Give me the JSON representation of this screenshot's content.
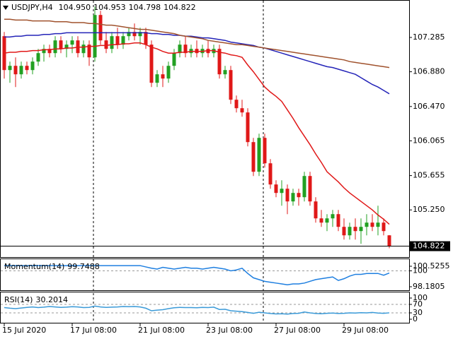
{
  "chart_data": [
    {
      "type": "candlestick",
      "title": "USDJPY,H4",
      "header_labels": [
        "104.950",
        "104.953",
        "104.798",
        "104.822"
      ],
      "categories": [
        "15 Jul 2020",
        null,
        null,
        null,
        null,
        null,
        null,
        null,
        null,
        null,
        null,
        null,
        "17 Jul 08:00",
        null,
        null,
        null,
        null,
        null,
        null,
        null,
        null,
        null,
        null,
        null,
        "21 Jul 08:00",
        null,
        null,
        null,
        null,
        null,
        null,
        null,
        null,
        null,
        null,
        null,
        "23 Jul 08:00",
        null,
        null,
        null,
        null,
        null,
        null,
        null,
        null,
        null,
        null,
        null,
        "27 Jul 08:00",
        null,
        null,
        null,
        null,
        null,
        null,
        null,
        null,
        null,
        null,
        null,
        "29 Jul 08:00",
        null,
        null,
        null,
        null,
        null,
        null,
        null,
        null
      ],
      "open": [
        107.3,
        106.9,
        106.95,
        106.85,
        106.95,
        106.9,
        107.0,
        107.1,
        107.15,
        107.1,
        107.25,
        107.15,
        107.2,
        107.25,
        107.1,
        107.2,
        107.05,
        107.55,
        107.25,
        107.15,
        107.3,
        107.2,
        107.3,
        107.35,
        107.3,
        107.35,
        107.2,
        106.75,
        106.85,
        106.8,
        106.95,
        107.1,
        107.2,
        107.1,
        107.15,
        107.1,
        107.15,
        107.1,
        107.15,
        106.85,
        106.9,
        106.55,
        106.45,
        106.4,
        106.05,
        105.7,
        106.1,
        105.8,
        105.55,
        105.45,
        105.5,
        105.35,
        105.45,
        105.4,
        105.65,
        105.35,
        105.15,
        105.1,
        105.15,
        105.2,
        105.05,
        104.95,
        105.05,
        105.0,
        105.05,
        105.1,
        105.05,
        105.1,
        104.95
      ],
      "high": [
        107.35,
        107.0,
        107.05,
        107.0,
        107.0,
        107.05,
        107.15,
        107.2,
        107.2,
        107.3,
        107.3,
        107.25,
        107.3,
        107.3,
        107.25,
        107.25,
        107.65,
        107.6,
        107.35,
        107.35,
        107.4,
        107.35,
        107.4,
        107.45,
        107.4,
        107.4,
        107.25,
        106.9,
        106.95,
        107.0,
        107.15,
        107.25,
        107.3,
        107.2,
        107.25,
        107.2,
        107.25,
        107.2,
        107.2,
        106.95,
        106.95,
        106.6,
        106.55,
        106.45,
        106.1,
        106.15,
        106.15,
        105.85,
        105.6,
        105.6,
        105.55,
        105.5,
        105.5,
        105.7,
        105.7,
        105.4,
        105.25,
        105.2,
        105.25,
        105.25,
        105.15,
        105.1,
        105.15,
        105.15,
        105.2,
        105.2,
        105.3,
        105.15,
        104.953
      ],
      "low": [
        106.8,
        106.75,
        106.7,
        106.8,
        106.85,
        106.85,
        106.95,
        107.0,
        107.05,
        107.05,
        107.1,
        107.05,
        107.1,
        107.05,
        107.05,
        106.95,
        107.0,
        107.2,
        107.1,
        107.1,
        107.15,
        107.15,
        107.25,
        107.25,
        107.2,
        107.15,
        106.7,
        106.7,
        106.7,
        106.75,
        106.9,
        107.05,
        107.05,
        107.05,
        107.05,
        107.05,
        107.05,
        107.05,
        106.8,
        106.8,
        106.5,
        106.4,
        106.35,
        106.0,
        105.65,
        105.65,
        105.75,
        105.5,
        105.4,
        105.3,
        105.2,
        105.3,
        105.3,
        105.35,
        105.3,
        105.1,
        105.05,
        105.0,
        105.05,
        105.0,
        104.9,
        104.9,
        104.9,
        104.85,
        104.95,
        105.0,
        104.95,
        104.95,
        104.798
      ],
      "close": [
        106.9,
        106.95,
        106.85,
        106.95,
        106.9,
        107.0,
        107.1,
        107.15,
        107.1,
        107.25,
        107.15,
        107.2,
        107.25,
        107.1,
        107.2,
        107.05,
        107.55,
        107.25,
        107.15,
        107.3,
        107.2,
        107.3,
        107.35,
        107.3,
        107.35,
        107.2,
        106.75,
        106.85,
        106.8,
        106.95,
        107.1,
        107.2,
        107.1,
        107.15,
        107.1,
        107.15,
        107.1,
        107.15,
        106.85,
        106.9,
        106.55,
        106.45,
        106.4,
        106.05,
        105.7,
        106.1,
        105.8,
        105.55,
        105.45,
        105.5,
        105.35,
        105.45,
        105.4,
        105.65,
        105.35,
        105.15,
        105.1,
        105.15,
        105.2,
        105.05,
        104.95,
        105.05,
        105.0,
        105.05,
        105.1,
        105.05,
        105.1,
        105.0,
        104.822
      ],
      "up_color": "#22a022",
      "down_color": "#e01818",
      "series": [
        {
          "color": "#e01818",
          "values": [
            107.1,
            107.11,
            107.11,
            107.12,
            107.12,
            107.13,
            107.13,
            107.14,
            107.14,
            107.15,
            107.15,
            107.16,
            107.16,
            107.17,
            107.17,
            107.18,
            107.18,
            107.19,
            107.19,
            107.2,
            107.2,
            107.21,
            107.21,
            107.22,
            107.22,
            107.2,
            107.17,
            107.15,
            107.12,
            107.1,
            107.1,
            107.11,
            107.11,
            107.12,
            107.12,
            107.12,
            107.13,
            107.13,
            107.11,
            107.1,
            107.08,
            107.07,
            107.05,
            106.96,
            106.88,
            106.79,
            106.7,
            106.64,
            106.59,
            106.53,
            106.43,
            106.33,
            106.22,
            106.12,
            106.02,
            105.91,
            105.81,
            105.7,
            105.64,
            105.58,
            105.51,
            105.45,
            105.4,
            105.35,
            105.3,
            105.25,
            105.19,
            105.14,
            105.08
          ]
        },
        {
          "color": "#2424b8",
          "values": [
            107.29,
            107.29,
            107.3,
            107.3,
            107.31,
            107.31,
            107.31,
            107.32,
            107.32,
            107.33,
            107.33,
            107.34,
            107.34,
            107.34,
            107.34,
            107.34,
            107.34,
            107.34,
            107.34,
            107.34,
            107.34,
            107.34,
            107.34,
            107.34,
            107.34,
            107.34,
            107.33,
            107.33,
            107.32,
            107.32,
            107.31,
            107.31,
            107.3,
            107.3,
            107.29,
            107.28,
            107.28,
            107.27,
            107.26,
            107.25,
            107.23,
            107.22,
            107.21,
            107.2,
            107.19,
            107.17,
            107.16,
            107.14,
            107.12,
            107.1,
            107.08,
            107.06,
            107.04,
            107.02,
            107.0,
            106.98,
            106.96,
            106.94,
            106.93,
            106.91,
            106.89,
            106.87,
            106.85,
            106.81,
            106.77,
            106.73,
            106.7,
            106.66,
            106.62
          ]
        },
        {
          "color": "#a0522d",
          "values": [
            107.5,
            107.5,
            107.49,
            107.49,
            107.49,
            107.48,
            107.48,
            107.48,
            107.48,
            107.47,
            107.47,
            107.47,
            107.46,
            107.46,
            107.46,
            107.45,
            107.45,
            107.44,
            107.43,
            107.43,
            107.42,
            107.41,
            107.4,
            107.39,
            107.38,
            107.38,
            107.37,
            107.36,
            107.35,
            107.34,
            107.33,
            107.31,
            107.3,
            107.29,
            107.28,
            107.27,
            107.25,
            107.24,
            107.23,
            107.22,
            107.21,
            107.2,
            107.2,
            107.19,
            107.18,
            107.17,
            107.16,
            107.15,
            107.14,
            107.13,
            107.12,
            107.11,
            107.1,
            107.09,
            107.08,
            107.07,
            107.06,
            107.05,
            107.04,
            107.03,
            107.02,
            107.0,
            106.99,
            106.98,
            106.97,
            106.96,
            106.95,
            106.94,
            106.93
          ]
        }
      ],
      "ylim": [
        104.71,
        107.71
      ],
      "yticks": [
        107.285,
        {
          "value": 106.88,
          "label": "106.880"
        },
        {
          "value": 106.47,
          "label": "106.470"
        },
        106.065,
        105.655,
        {
          "value": 105.25,
          "label": "105.250"
        }
      ],
      "current_price": {
        "value": 104.822,
        "label": "104.822"
      }
    },
    {
      "type": "line",
      "title": "Momentum(14)",
      "color": "#1e7fe0",
      "values": [
        100.6,
        100.6,
        100.6,
        100.6,
        100.6,
        100.6,
        100.6,
        100.6,
        100.6,
        100.6,
        100.6,
        100.6,
        100.6,
        100.6,
        100.6,
        100.6,
        100.6,
        100.6,
        100.6,
        100.6,
        100.6,
        100.6,
        100.6,
        100.6,
        100.6,
        100.45,
        100.3,
        100.2,
        100.4,
        100.3,
        100.2,
        100.3,
        100.4,
        100.3,
        100.3,
        100.2,
        100.3,
        100.4,
        100.3,
        100.2,
        100.0,
        100.1,
        100.3,
        99.7,
        99.2,
        99.0,
        98.8,
        98.7,
        98.6,
        98.5,
        98.4,
        98.5,
        98.5,
        98.6,
        98.8,
        99.0,
        99.1,
        99.2,
        99.3,
        98.9,
        99.1,
        99.4,
        99.6,
        99.6,
        99.7,
        99.7,
        99.7,
        99.5,
        99.7488
      ],
      "ylim": [
        98.1805,
        100.5255
      ],
      "yticks": [
        98.1805,
        100,
        100.5255
      ]
    },
    {
      "type": "line",
      "title": "RSI(14)",
      "color": "#3a9ad8",
      "values": [
        55,
        52,
        50,
        53,
        56,
        58,
        55,
        57,
        60,
        58,
        56,
        57,
        59,
        58,
        55,
        56,
        62,
        58,
        56,
        57,
        58,
        60,
        59,
        60,
        58,
        52,
        40,
        43,
        45,
        50,
        54,
        56,
        55,
        55,
        54,
        56,
        55,
        57,
        46,
        47,
        40,
        38,
        36,
        32,
        28,
        33,
        30,
        27,
        25,
        26,
        24,
        27,
        28,
        34,
        30,
        27,
        26,
        28,
        29,
        27,
        28,
        30,
        29,
        31,
        30,
        32,
        29,
        28,
        30.2014
      ],
      "ylim": [
        0,
        100
      ],
      "yticks": [
        0,
        30,
        70,
        100
      ]
    }
  ]
}
